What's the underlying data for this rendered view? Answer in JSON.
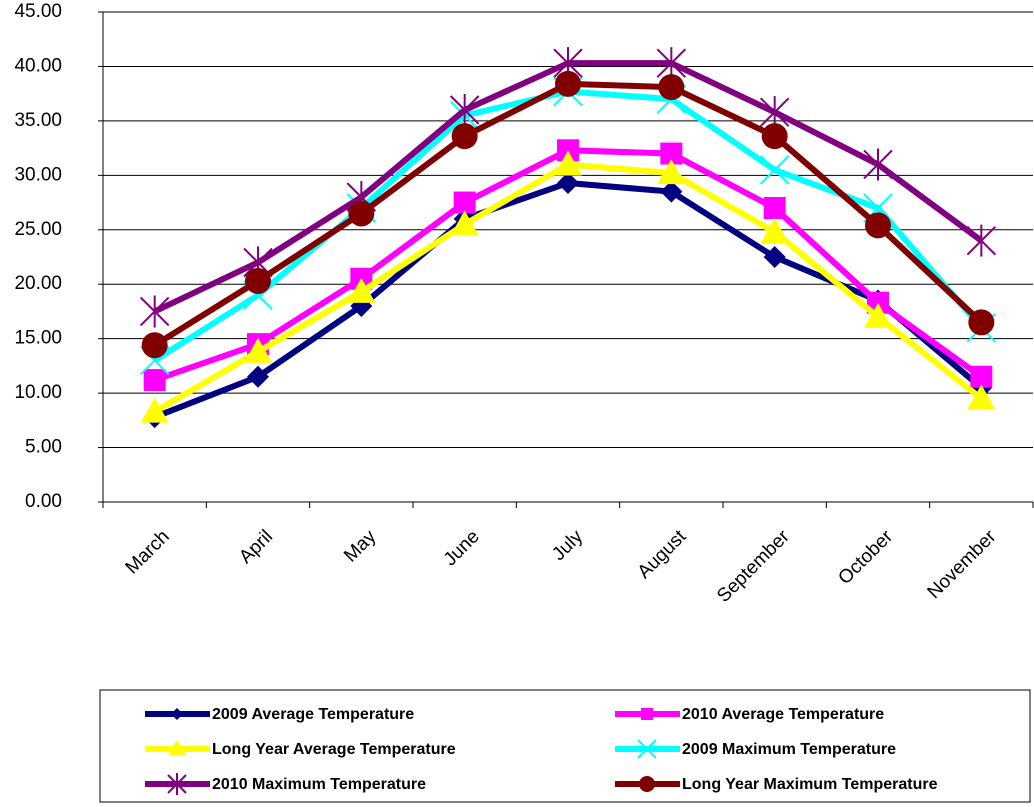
{
  "chart_data": {
    "type": "line",
    "categories": [
      "March",
      "April",
      "May",
      "June",
      "July",
      "August",
      "September",
      "October",
      "November"
    ],
    "series": [
      {
        "name": "2009 Average Temperature",
        "color": "#000080",
        "marker": "diamond",
        "values": [
          7.8,
          11.5,
          18,
          26,
          29.3,
          28.5,
          22.5,
          18.5,
          10.5
        ]
      },
      {
        "name": "2010 Average Temperature",
        "color": "#ff00ff",
        "marker": "square",
        "values": [
          11.2,
          14.5,
          20.5,
          27.5,
          32.3,
          32,
          27,
          18.3,
          11.5
        ]
      },
      {
        "name": "Long Year Average Temperature",
        "color": "#ffff00",
        "marker": "triangle",
        "values": [
          8.3,
          13.8,
          19.3,
          25.5,
          31,
          30.2,
          24.8,
          17,
          9.5
        ]
      },
      {
        "name": "2009 Maximum Temperature",
        "color": "#00ffff",
        "marker": "x",
        "values": [
          13,
          19,
          27,
          35.5,
          37.7,
          37,
          30.5,
          27,
          16
        ]
      },
      {
        "name": "2010 Maximum Temperature",
        "color": "#800080",
        "marker": "star",
        "values": [
          17.5,
          22,
          28,
          36,
          40.3,
          40.3,
          35.8,
          31,
          24
        ]
      },
      {
        "name": "Long Year Maximum Temperature",
        "color": "#800000",
        "marker": "circle",
        "values": [
          14.4,
          20.3,
          26.5,
          33.6,
          38.4,
          38.1,
          33.6,
          25.4,
          16.5
        ]
      }
    ],
    "ylim": [
      0,
      45
    ],
    "yticks": [
      {
        "value": 0,
        "label": "0.00"
      },
      {
        "value": 5,
        "label": "5.00"
      },
      {
        "value": 10,
        "label": "10.00"
      },
      {
        "value": 15,
        "label": "15.00"
      },
      {
        "value": 20,
        "label": "20.00"
      },
      {
        "value": 25,
        "label": "25.00"
      },
      {
        "value": 30,
        "label": "30.00"
      },
      {
        "value": 35,
        "label": "35.00"
      },
      {
        "value": 40,
        "label": "40.00"
      },
      {
        "value": 45,
        "label": "45.00"
      }
    ],
    "grid": true,
    "legend": "bottom"
  }
}
